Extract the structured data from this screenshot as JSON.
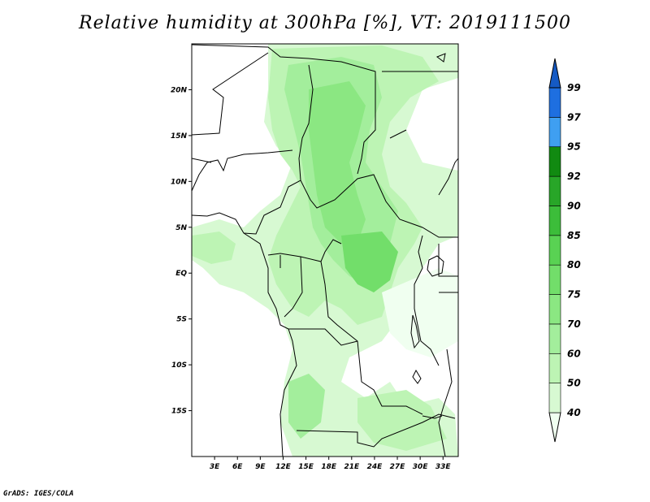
{
  "title": "Relative humidity at 300hPa [%], VT: 2019111500",
  "credit": "GrADS: IGES/COLA",
  "map": {
    "lat_ticks": [
      "20N",
      "15N",
      "10N",
      "5N",
      "EQ",
      "5S",
      "10S",
      "15S"
    ],
    "lat_values": [
      20,
      15,
      10,
      5,
      0,
      -5,
      -10,
      -15
    ],
    "lon_ticks": [
      "3E",
      "6E",
      "9E",
      "12E",
      "15E",
      "18E",
      "21E",
      "24E",
      "27E",
      "30E",
      "33E"
    ],
    "lon_values": [
      3,
      6,
      9,
      12,
      15,
      18,
      21,
      24,
      27,
      30,
      33
    ],
    "lon_range": [
      0,
      35
    ],
    "lat_range": [
      -20,
      25
    ]
  },
  "colorbar": {
    "levels": [
      "40",
      "50",
      "60",
      "70",
      "75",
      "80",
      "85",
      "90",
      "92",
      "95",
      "97",
      "99"
    ],
    "colors": [
      "#f0fff0",
      "#d7f9d2",
      "#bdf4b4",
      "#a3ee9c",
      "#8be782",
      "#72de6a",
      "#59d253",
      "#3cbd3a",
      "#28a628",
      "#118a11",
      "#3f9ff1",
      "#1e6fe0",
      "#155ac4"
    ]
  }
}
